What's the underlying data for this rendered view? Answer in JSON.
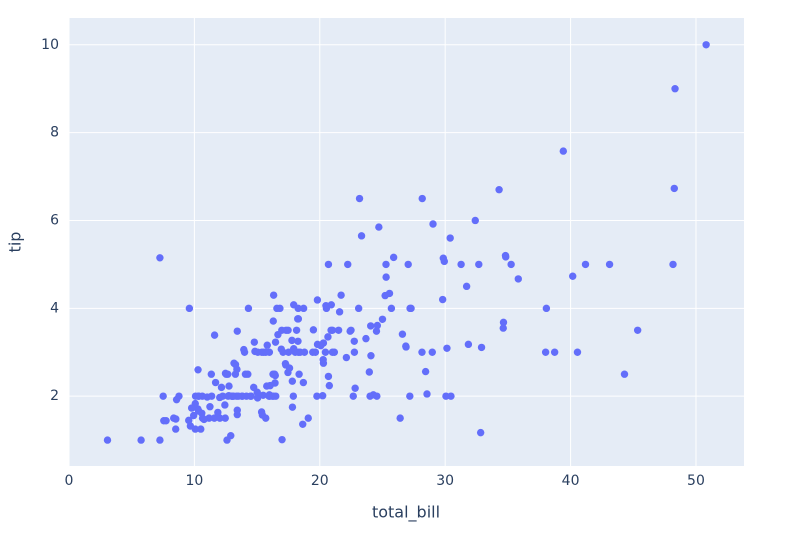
{
  "chart_data": {
    "type": "scatter",
    "xlabel": "total_bill",
    "ylabel": "tip",
    "xlim": [
      0,
      53.83
    ],
    "ylim": [
      0.41,
      10.61
    ],
    "xticks": [
      0,
      10,
      20,
      30,
      40,
      50
    ],
    "yticks": [
      2,
      4,
      6,
      8,
      10
    ],
    "grid": true,
    "background": "#e5ecf6",
    "x": [
      16.99,
      10.34,
      21.01,
      23.68,
      24.59,
      25.29,
      8.77,
      26.88,
      15.04,
      14.78,
      10.27,
      35.26,
      15.42,
      18.43,
      14.83,
      21.58,
      10.33,
      16.29,
      16.97,
      20.65,
      17.92,
      20.29,
      15.77,
      39.42,
      19.82,
      17.81,
      13.37,
      12.69,
      21.7,
      19.65,
      9.55,
      18.35,
      15.06,
      20.69,
      17.78,
      24.06,
      16.31,
      16.93,
      18.69,
      31.27,
      16.04,
      17.46,
      13.94,
      9.68,
      30.4,
      18.29,
      22.23,
      32.4,
      28.55,
      18.04,
      12.54,
      10.29,
      34.81,
      9.94,
      25.56,
      19.49,
      38.01,
      26.41,
      11.24,
      48.27,
      20.29,
      13.81,
      11.02,
      18.29,
      17.59,
      20.08,
      16.45,
      3.07,
      20.23,
      15.01,
      12.02,
      17.07,
      26.86,
      25.28,
      14.73,
      10.51,
      17.92,
      27.2,
      22.76,
      17.29,
      19.44,
      16.66,
      10.07,
      32.68,
      15.98,
      34.83,
      13.03,
      18.28,
      24.71,
      21.16,
      28.97,
      22.49,
      5.75,
      16.32,
      22.75,
      40.17,
      27.28,
      12.03,
      21.01,
      12.46,
      11.35,
      15.38,
      44.3,
      22.42,
      20.92,
      15.36,
      20.49,
      25.21,
      18.24,
      14.31,
      14.0,
      7.25,
      38.07,
      23.95,
      25.71,
      17.31,
      29.93,
      10.65,
      12.43,
      24.08,
      11.69,
      13.42,
      14.26,
      15.95,
      12.48,
      29.8,
      8.52,
      14.52,
      11.38,
      22.82,
      19.08,
      20.27,
      11.17,
      12.26,
      18.26,
      8.51,
      10.33,
      14.15,
      16.0,
      13.16,
      17.47,
      34.3,
      41.19,
      27.05,
      16.43,
      8.35,
      18.64,
      11.87,
      9.78,
      7.51,
      14.07,
      13.13,
      17.26,
      24.55,
      19.77,
      29.85,
      48.17,
      25.0,
      13.39,
      16.49,
      21.5,
      12.66,
      16.21,
      13.81,
      17.51,
      24.52,
      20.76,
      31.71,
      10.59,
      10.63,
      50.81,
      15.81,
      7.25,
      31.85,
      16.82,
      32.9,
      17.89,
      14.48,
      9.6,
      34.63,
      34.65,
      23.33,
      45.35,
      23.17,
      40.55,
      20.69,
      20.9,
      30.46,
      18.15,
      23.1,
      15.69,
      19.81,
      28.44,
      15.48,
      16.58,
      7.56,
      10.34,
      43.11,
      13.0,
      13.51,
      18.71,
      12.74,
      13.0,
      16.4,
      20.53,
      16.47,
      26.59,
      38.73,
      24.27,
      12.76,
      30.06,
      25.89,
      48.33,
      13.27,
      28.17,
      12.9,
      28.15,
      11.59,
      7.74,
      30.14,
      12.16,
      13.42,
      8.58,
      15.98,
      13.42,
      16.27,
      10.09,
      20.45,
      13.28,
      22.12,
      24.01,
      15.69,
      11.61,
      10.77,
      15.53,
      10.07,
      12.6,
      32.83,
      35.83,
      29.03,
      27.18,
      22.67,
      17.82,
      18.78
    ],
    "series": [
      {
        "color": "#636efa",
        "values": [
          1.01,
          1.66,
          3.5,
          3.31,
          3.61,
          4.71,
          2.0,
          3.12,
          1.96,
          3.23,
          1.71,
          5.0,
          1.57,
          3.0,
          3.02,
          3.92,
          1.67,
          3.71,
          3.5,
          3.35,
          4.08,
          2.75,
          2.23,
          7.58,
          3.18,
          2.34,
          2.0,
          2.0,
          4.3,
          3.0,
          1.45,
          2.5,
          3.0,
          2.45,
          3.27,
          3.6,
          2.0,
          3.07,
          2.31,
          5.0,
          2.24,
          2.54,
          3.06,
          1.32,
          5.6,
          3.0,
          5.0,
          6.0,
          2.05,
          3.0,
          2.5,
          2.6,
          5.2,
          1.56,
          4.34,
          3.51,
          3.0,
          1.5,
          1.76,
          6.73,
          3.21,
          2.0,
          1.98,
          3.76,
          2.64,
          3.15,
          2.47,
          1.0,
          2.01,
          2.09,
          1.97,
          3.0,
          3.14,
          5.0,
          2.2,
          1.25,
          3.08,
          4.0,
          3.0,
          2.71,
          3.0,
          3.4,
          1.83,
          5.0,
          2.03,
          5.17,
          2.0,
          4.0,
          5.85,
          3.0,
          3.0,
          3.5,
          1.0,
          4.3,
          3.25,
          4.73,
          4.0,
          1.5,
          3.0,
          1.5,
          2.5,
          3.0,
          2.5,
          3.48,
          4.08,
          1.64,
          4.06,
          4.29,
          3.76,
          4.0,
          3.0,
          1.0,
          4.0,
          2.55,
          4.0,
          3.5,
          5.07,
          1.5,
          1.8,
          2.92,
          2.31,
          1.68,
          2.5,
          2.0,
          2.52,
          4.2,
          1.48,
          2.0,
          2.0,
          2.18,
          1.5,
          2.83,
          1.5,
          2.0,
          3.25,
          1.25,
          2.0,
          2.0,
          2.0,
          2.75,
          3.5,
          6.7,
          5.0,
          5.0,
          2.3,
          1.5,
          1.36,
          1.63,
          1.73,
          2.0,
          2.5,
          2.0,
          2.74,
          2.0,
          2.0,
          5.14,
          5.0,
          3.75,
          2.61,
          2.0,
          3.5,
          2.5,
          2.0,
          2.0,
          3.0,
          3.48,
          2.24,
          4.5,
          1.61,
          2.0,
          10.0,
          3.16,
          5.15,
          3.18,
          4.0,
          3.11,
          2.0,
          2.0,
          4.0,
          3.55,
          3.68,
          5.65,
          3.5,
          6.5,
          3.0,
          5.0,
          3.5,
          2.0,
          3.5,
          4.0,
          1.5,
          4.19,
          2.56,
          2.02,
          4.0,
          1.44,
          2.0,
          5.0,
          2.0,
          2.0,
          4.0,
          2.01,
          2.0,
          2.5,
          4.0,
          3.23,
          3.41,
          3.0,
          2.03,
          2.23,
          2.0,
          5.16,
          9.0,
          2.5,
          6.5,
          1.1,
          3.0,
          1.5,
          1.44,
          3.09,
          2.2,
          3.48,
          1.92,
          3.0,
          1.58,
          2.5,
          2.0,
          3.0,
          2.72,
          2.88,
          2.0,
          3.0,
          3.39,
          1.47,
          3.0,
          1.25,
          1.0,
          1.17,
          4.67,
          5.92,
          2.0,
          2.0,
          1.75,
          3.0
        ]
      }
    ]
  }
}
